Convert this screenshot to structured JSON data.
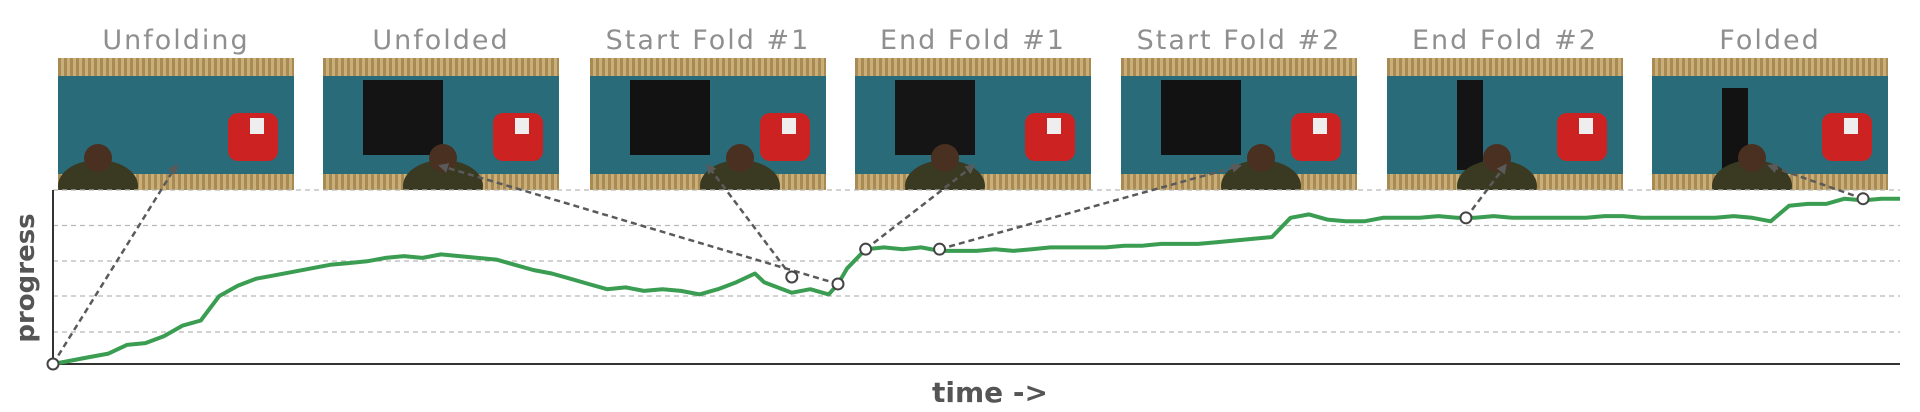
{
  "chart_data": {
    "type": "line",
    "xlabel": "time ->",
    "ylabel": "progress",
    "grid": true,
    "series": [
      {
        "color": "#3a9d52",
        "x": [
          0,
          0.01,
          0.02,
          0.03,
          0.04,
          0.05,
          0.06,
          0.07,
          0.08,
          0.09,
          0.1,
          0.11,
          0.12,
          0.13,
          0.14,
          0.15,
          0.16,
          0.17,
          0.18,
          0.19,
          0.2,
          0.21,
          0.22,
          0.23,
          0.24,
          0.25,
          0.26,
          0.27,
          0.28,
          0.29,
          0.3,
          0.31,
          0.32,
          0.33,
          0.34,
          0.35,
          0.36,
          0.37,
          0.38,
          0.385,
          0.39,
          0.4,
          0.41,
          0.42,
          0.425,
          0.43,
          0.44,
          0.45,
          0.46,
          0.47,
          0.48,
          0.49,
          0.5,
          0.51,
          0.52,
          0.53,
          0.54,
          0.55,
          0.56,
          0.57,
          0.58,
          0.59,
          0.6,
          0.61,
          0.62,
          0.63,
          0.64,
          0.65,
          0.66,
          0.67,
          0.68,
          0.69,
          0.7,
          0.71,
          0.72,
          0.73,
          0.74,
          0.75,
          0.76,
          0.77,
          0.78,
          0.79,
          0.8,
          0.81,
          0.82,
          0.83,
          0.84,
          0.85,
          0.86,
          0.87,
          0.88,
          0.89,
          0.9,
          0.91,
          0.92,
          0.93,
          0.94,
          0.95,
          0.96,
          0.97,
          0.98,
          0.99,
          1.0
        ],
        "y": [
          0.0,
          0.02,
          0.04,
          0.06,
          0.11,
          0.12,
          0.16,
          0.22,
          0.25,
          0.39,
          0.45,
          0.49,
          0.51,
          0.53,
          0.55,
          0.57,
          0.58,
          0.59,
          0.61,
          0.62,
          0.61,
          0.63,
          0.62,
          0.61,
          0.6,
          0.57,
          0.54,
          0.52,
          0.49,
          0.46,
          0.43,
          0.44,
          0.42,
          0.43,
          0.42,
          0.4,
          0.43,
          0.47,
          0.52,
          0.47,
          0.45,
          0.41,
          0.43,
          0.4,
          0.46,
          0.55,
          0.66,
          0.67,
          0.66,
          0.67,
          0.65,
          0.65,
          0.65,
          0.66,
          0.65,
          0.66,
          0.67,
          0.67,
          0.67,
          0.67,
          0.68,
          0.68,
          0.69,
          0.69,
          0.69,
          0.7,
          0.71,
          0.72,
          0.73,
          0.84,
          0.86,
          0.83,
          0.82,
          0.82,
          0.84,
          0.84,
          0.84,
          0.85,
          0.84,
          0.84,
          0.85,
          0.84,
          0.84,
          0.84,
          0.84,
          0.84,
          0.85,
          0.85,
          0.84,
          0.84,
          0.84,
          0.84,
          0.84,
          0.85,
          0.84,
          0.82,
          0.91,
          0.92,
          0.92,
          0.95,
          0.94,
          0.95,
          0.95
        ]
      }
    ]
  },
  "frames": [
    {
      "label": "Unfolding",
      "chart_x": 0.0,
      "chart_y": 0.0
    },
    {
      "label": "Unfolded",
      "chart_x": 0.425,
      "chart_y": 0.46
    },
    {
      "label": "Start Fold #1",
      "chart_x": 0.4,
      "chart_y": 0.5
    },
    {
      "label": "End Fold #1",
      "chart_x": 0.44,
      "chart_y": 0.66
    },
    {
      "label": "Start Fold #2",
      "chart_x": 0.48,
      "chart_y": 0.66
    },
    {
      "label": "End Fold #2",
      "chart_x": 0.765,
      "chart_y": 0.84
    },
    {
      "label": "Folded",
      "chart_x": 0.98,
      "chart_y": 0.95
    }
  ]
}
